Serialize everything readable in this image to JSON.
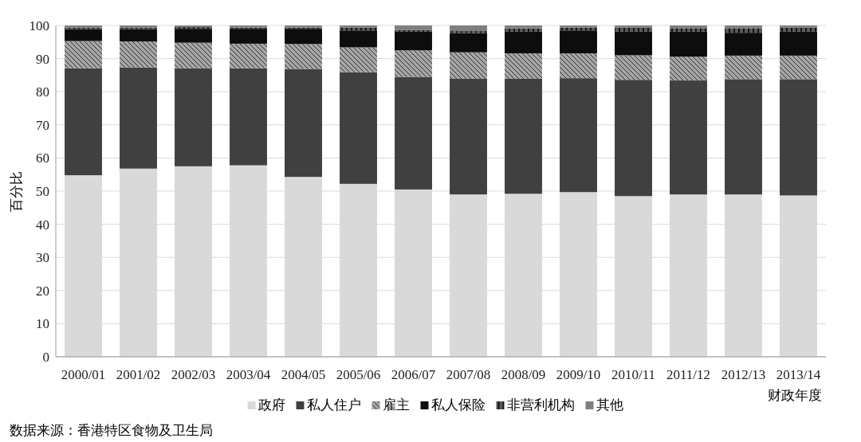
{
  "chart_data": {
    "type": "bar",
    "stacked": true,
    "ylabel": "百分比",
    "xlabel": "财政年度",
    "categories": [
      "2000/01",
      "2001/02",
      "2002/03",
      "2003/04",
      "2004/05",
      "2005/06",
      "2006/07",
      "2007/08",
      "2008/09",
      "2009/10",
      "2010/11",
      "2011/12",
      "2012/13",
      "2013/14"
    ],
    "series": [
      {
        "name": "政府",
        "color": "#d9d9d9",
        "values": [
          54.8,
          56.8,
          57.5,
          57.8,
          54.3,
          52.2,
          50.5,
          49.0,
          49.2,
          49.7,
          48.5,
          49.0,
          49.0,
          48.7
        ]
      },
      {
        "name": "私人住户",
        "color": "#404040",
        "values": [
          32.3,
          30.5,
          29.6,
          29.3,
          32.6,
          33.7,
          34.0,
          34.9,
          34.7,
          34.4,
          35.1,
          34.4,
          34.8,
          35.1
        ]
      },
      {
        "name": "雇主",
        "color": "#a6a6a6",
        "values": [
          8.2,
          7.9,
          7.7,
          7.4,
          7.5,
          7.5,
          8.0,
          8.0,
          7.7,
          7.5,
          7.4,
          7.2,
          7.1,
          7.1
        ]
      },
      {
        "name": "私人保险",
        "color": "#0d0d0d",
        "values": [
          3.6,
          3.7,
          4.2,
          4.5,
          4.6,
          5.1,
          5.6,
          5.8,
          6.5,
          6.9,
          7.1,
          7.5,
          6.9,
          7.2
        ]
      },
      {
        "name": "非营利机构",
        "color": "#595959",
        "values": [
          0.5,
          0.5,
          0.5,
          0.4,
          0.4,
          0.8,
          0.5,
          0.6,
          1.0,
          0.9,
          1.2,
          1.1,
          1.4,
          1.2
        ]
      },
      {
        "name": "其他",
        "color": "#7f7f7f",
        "values": [
          0.6,
          0.6,
          0.5,
          0.6,
          0.6,
          0.7,
          1.4,
          1.7,
          0.9,
          0.6,
          0.7,
          0.8,
          0.8,
          0.7
        ]
      }
    ],
    "ylim": [
      0,
      100
    ],
    "yticks": [
      0,
      10,
      20,
      30,
      40,
      50,
      60,
      70,
      80,
      90,
      100
    ],
    "grid": "y",
    "legend": "bottom",
    "annotations": [
      "数据来源：香港特区食物及卫生局"
    ]
  }
}
